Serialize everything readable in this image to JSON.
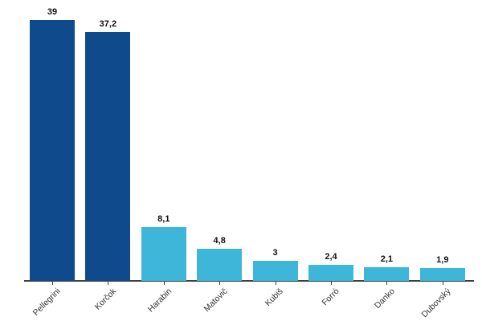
{
  "chart_data": {
    "type": "bar",
    "title": "",
    "xlabel": "",
    "ylabel": "",
    "categories": [
      "Pellegrini",
      "Korčok",
      "Harabin",
      "Matovič",
      "Kubiš",
      "Forró",
      "Danko",
      "Dubovský"
    ],
    "values": [
      39,
      37.2,
      8.1,
      4.8,
      3,
      2.4,
      2.1,
      1.9
    ],
    "value_labels": [
      "39",
      "37,2",
      "8,1",
      "4,8",
      "3",
      "2,4",
      "2,1",
      "1,9"
    ],
    "bar_colors": [
      "#0e4a8c",
      "#0e4a8c",
      "#3db6d9",
      "#3db6d9",
      "#3db6d9",
      "#3db6d9",
      "#3db6d9",
      "#3db6d9"
    ],
    "ylim": [
      0,
      42
    ],
    "grid": false,
    "legend": "none",
    "tick_label_rotation_deg": 45
  },
  "colors": {
    "background": "#ffffff",
    "dark_blue": "#0e4a8c",
    "light_blue": "#3db6d9",
    "axis_line": "#3f3f3f",
    "tick_mark": "#3f3f3f",
    "axis_label_text": "#333333",
    "value_label_text": "#111111"
  }
}
